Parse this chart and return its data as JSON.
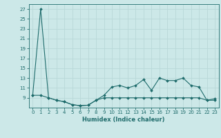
{
  "xlabel": "Humidex (Indice chaleur)",
  "background_color": "#cce8e8",
  "grid_color": "#b8d8d8",
  "line_color": "#1e6b6b",
  "x_values": [
    0,
    1,
    2,
    3,
    4,
    5,
    6,
    7,
    8,
    9,
    10,
    11,
    12,
    13,
    14,
    15,
    16,
    17,
    18,
    19,
    20,
    21,
    22,
    23
  ],
  "y_max": [
    9.5,
    27,
    9.0,
    8.5,
    8.2,
    7.6,
    7.4,
    7.5,
    8.5,
    9.5,
    11.2,
    11.5,
    11.0,
    11.5,
    12.7,
    10.5,
    13.0,
    12.5,
    12.5,
    13.0,
    11.5,
    11.2,
    8.5,
    8.8
  ],
  "y_min": [
    9.5,
    9.5,
    9.0,
    8.5,
    8.2,
    7.6,
    7.4,
    7.5,
    8.5,
    9.0,
    9.0,
    9.0,
    9.0,
    9.0,
    9.0,
    9.0,
    9.0,
    9.0,
    9.0,
    9.0,
    9.0,
    9.0,
    8.5,
    8.5
  ],
  "ylim": [
    7,
    28
  ],
  "yticks": [
    9,
    11,
    13,
    15,
    17,
    19,
    21,
    23,
    25,
    27
  ],
  "xlim": [
    -0.5,
    23.5
  ],
  "xticks": [
    0,
    1,
    2,
    3,
    4,
    5,
    6,
    7,
    8,
    9,
    10,
    11,
    12,
    13,
    14,
    15,
    16,
    17,
    18,
    19,
    20,
    21,
    22,
    23
  ],
  "xlabel_fontsize": 6.0,
  "tick_fontsize": 5.0
}
